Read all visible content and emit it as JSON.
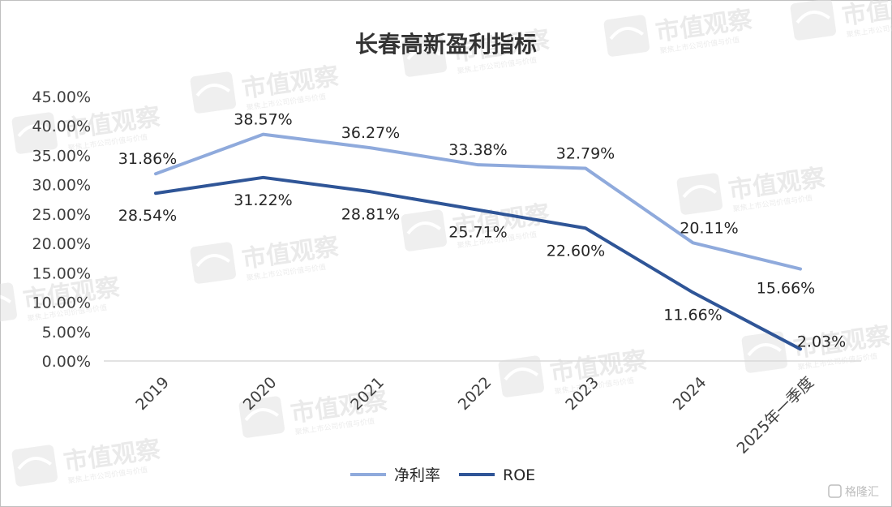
{
  "chart_data": {
    "type": "line",
    "title": "长春高新盈利指标",
    "categories": [
      "2019",
      "2020",
      "2021",
      "2022",
      "2023",
      "2024",
      "2025年一季度"
    ],
    "series": [
      {
        "name": "净利率",
        "values": [
          31.86,
          38.57,
          36.27,
          33.38,
          32.79,
          20.11,
          15.66
        ],
        "labels": [
          "31.86%",
          "38.57%",
          "36.27%",
          "33.38%",
          "32.79%",
          "20.11%",
          "15.66%"
        ],
        "color": "#8FAADC"
      },
      {
        "name": "ROE",
        "values": [
          28.54,
          31.22,
          28.81,
          25.71,
          22.6,
          11.66,
          2.03
        ],
        "labels": [
          "28.54%",
          "31.22%",
          "28.81%",
          "25.71%",
          "22.60%",
          "11.66%",
          "2.03%"
        ],
        "color": "#2F5597"
      }
    ],
    "ylim": [
      0,
      45
    ],
    "yticks": [
      "0.00%",
      "5.00%",
      "10.00%",
      "15.00%",
      "20.00%",
      "25.00%",
      "30.00%",
      "35.00%",
      "40.00%",
      "45.00%"
    ],
    "grid": false,
    "legend": "bottom-center"
  },
  "watermark": {
    "text": "市值观察",
    "subtext": "聚焦上市公司价值与价值"
  },
  "corner_brand": "格隆汇"
}
